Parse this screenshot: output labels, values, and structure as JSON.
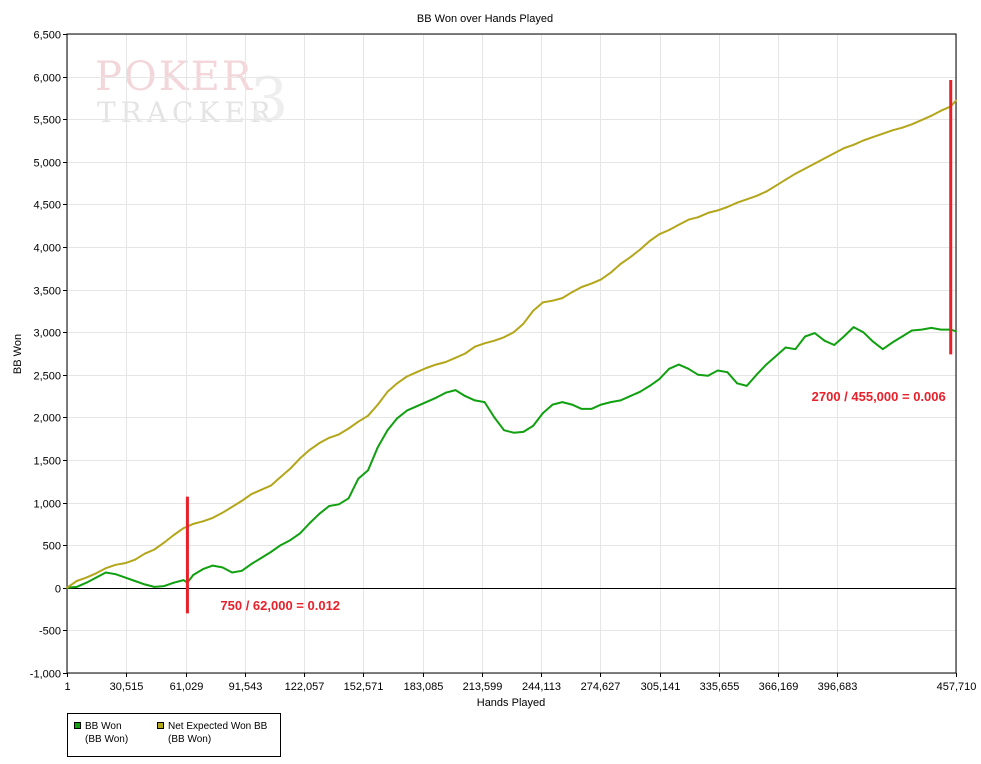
{
  "chart_data": {
    "type": "line",
    "title": "BB Won over Hands Played",
    "xlabel": "Hands Played",
    "ylabel": "BB Won",
    "xlim": [
      1,
      457710
    ],
    "ylim": [
      -1000,
      6500
    ],
    "xticks": [
      1,
      30515,
      61029,
      91543,
      122057,
      152571,
      183085,
      213599,
      244113,
      274627,
      305141,
      335655,
      366169,
      396683,
      457710
    ],
    "xtick_labels": [
      "1",
      "30,515",
      "61,029",
      "91,543",
      "122,057",
      "152,571",
      "183,085",
      "213,599",
      "244,113",
      "274,627",
      "305,141",
      "335,655",
      "366,169",
      "396,683",
      "457,710"
    ],
    "yticks": [
      -1000,
      -500,
      0,
      500,
      1000,
      1500,
      2000,
      2500,
      3000,
      3500,
      4000,
      4500,
      5000,
      5500,
      6000,
      6500
    ],
    "ytick_labels": [
      "-1,000",
      "-500",
      "0",
      "500",
      "1,000",
      "1,500",
      "2,000",
      "2,500",
      "3,000",
      "3,500",
      "4,000",
      "4,500",
      "5,000",
      "5,500",
      "6,000",
      "6,500"
    ],
    "grid": true,
    "legend_position": "bottom-left",
    "series": [
      {
        "name": "BB Won",
        "sublabel": "(BB Won)",
        "color": "#10a010",
        "x": [
          1,
          5000,
          10000,
          15000,
          20000,
          25000,
          30000,
          35000,
          40000,
          45000,
          50000,
          55000,
          60000,
          62000,
          65000,
          70000,
          75000,
          80000,
          85000,
          90000,
          95000,
          100000,
          105000,
          110000,
          115000,
          120000,
          125000,
          130000,
          135000,
          140000,
          145000,
          150000,
          155000,
          160000,
          165000,
          170000,
          175000,
          180000,
          185000,
          190000,
          195000,
          200000,
          205000,
          210000,
          215000,
          220000,
          225000,
          230000,
          235000,
          240000,
          245000,
          250000,
          255000,
          260000,
          265000,
          270000,
          275000,
          280000,
          285000,
          290000,
          295000,
          300000,
          305000,
          310000,
          315000,
          320000,
          325000,
          330000,
          335000,
          340000,
          345000,
          350000,
          355000,
          360000,
          365000,
          370000,
          375000,
          380000,
          385000,
          390000,
          395000,
          400000,
          405000,
          410000,
          415000,
          420000,
          425000,
          430000,
          435000,
          440000,
          445000,
          450000,
          455000,
          457710
        ],
        "y": [
          0,
          10,
          60,
          120,
          180,
          160,
          120,
          80,
          40,
          10,
          20,
          60,
          90,
          60,
          150,
          220,
          260,
          240,
          180,
          200,
          280,
          350,
          420,
          500,
          560,
          640,
          760,
          870,
          960,
          980,
          1050,
          1280,
          1380,
          1650,
          1850,
          1990,
          2080,
          2130,
          2180,
          2230,
          2290,
          2320,
          2250,
          2200,
          2180,
          2000,
          1850,
          1820,
          1830,
          1900,
          2050,
          2150,
          2180,
          2150,
          2100,
          2100,
          2150,
          2180,
          2200,
          2250,
          2300,
          2370,
          2450,
          2570,
          2620,
          2570,
          2500,
          2490,
          2550,
          2530,
          2400,
          2370,
          2500,
          2620,
          2720,
          2820,
          2800,
          2950,
          2990,
          2900,
          2850,
          2950,
          3060,
          3000,
          2890,
          2800,
          2880,
          2950,
          3020,
          3030,
          3050,
          3030,
          3030,
          3010
        ]
      },
      {
        "name": "Net Expected Won BB",
        "sublabel": "(BB Won)",
        "color": "#b4a61b",
        "x": [
          1,
          5000,
          10000,
          15000,
          20000,
          25000,
          30000,
          35000,
          40000,
          45000,
          50000,
          55000,
          60000,
          62000,
          65000,
          70000,
          75000,
          80000,
          85000,
          90000,
          95000,
          100000,
          105000,
          110000,
          115000,
          120000,
          125000,
          130000,
          135000,
          140000,
          145000,
          150000,
          155000,
          160000,
          165000,
          170000,
          175000,
          180000,
          185000,
          190000,
          195000,
          200000,
          205000,
          210000,
          215000,
          220000,
          225000,
          230000,
          235000,
          240000,
          245000,
          250000,
          255000,
          260000,
          265000,
          270000,
          275000,
          280000,
          285000,
          290000,
          295000,
          300000,
          305000,
          310000,
          315000,
          320000,
          325000,
          330000,
          335000,
          340000,
          345000,
          350000,
          355000,
          360000,
          365000,
          370000,
          375000,
          380000,
          385000,
          390000,
          395000,
          400000,
          405000,
          410000,
          415000,
          420000,
          425000,
          430000,
          435000,
          440000,
          445000,
          450000,
          455000,
          457710
        ],
        "y": [
          0,
          80,
          120,
          170,
          230,
          270,
          290,
          330,
          400,
          450,
          530,
          620,
          700,
          720,
          750,
          780,
          820,
          880,
          950,
          1020,
          1100,
          1150,
          1200,
          1300,
          1400,
          1520,
          1620,
          1700,
          1760,
          1800,
          1870,
          1950,
          2020,
          2150,
          2300,
          2400,
          2480,
          2530,
          2580,
          2620,
          2650,
          2700,
          2750,
          2830,
          2870,
          2900,
          2940,
          3000,
          3100,
          3250,
          3350,
          3370,
          3400,
          3470,
          3530,
          3570,
          3620,
          3700,
          3800,
          3880,
          3970,
          4070,
          4150,
          4200,
          4260,
          4320,
          4350,
          4400,
          4430,
          4470,
          4520,
          4560,
          4600,
          4650,
          4720,
          4790,
          4860,
          4920,
          4980,
          5040,
          5100,
          5160,
          5200,
          5250,
          5290,
          5330,
          5370,
          5400,
          5440,
          5490,
          5540,
          5600,
          5650,
          5720
        ]
      }
    ],
    "annotations": [
      {
        "text": "750 / 62,000 = 0.012",
        "x": 62000,
        "y_from": -300,
        "y_to": 1070,
        "color": "#e8202a"
      },
      {
        "text": "2700 / 455,000 = 0.006",
        "x": 455000,
        "y_from": 2740,
        "y_to": 5960,
        "color": "#e8202a"
      }
    ]
  },
  "watermark": {
    "line1": "POKER",
    "line2": "TRACKER",
    "mark": "3"
  },
  "legend": [
    {
      "label": "BB Won",
      "sublabel": "(BB Won)",
      "color": "#10a010"
    },
    {
      "label": "Net Expected Won BB",
      "sublabel": "(BB Won)",
      "color": "#b4a61b"
    }
  ]
}
